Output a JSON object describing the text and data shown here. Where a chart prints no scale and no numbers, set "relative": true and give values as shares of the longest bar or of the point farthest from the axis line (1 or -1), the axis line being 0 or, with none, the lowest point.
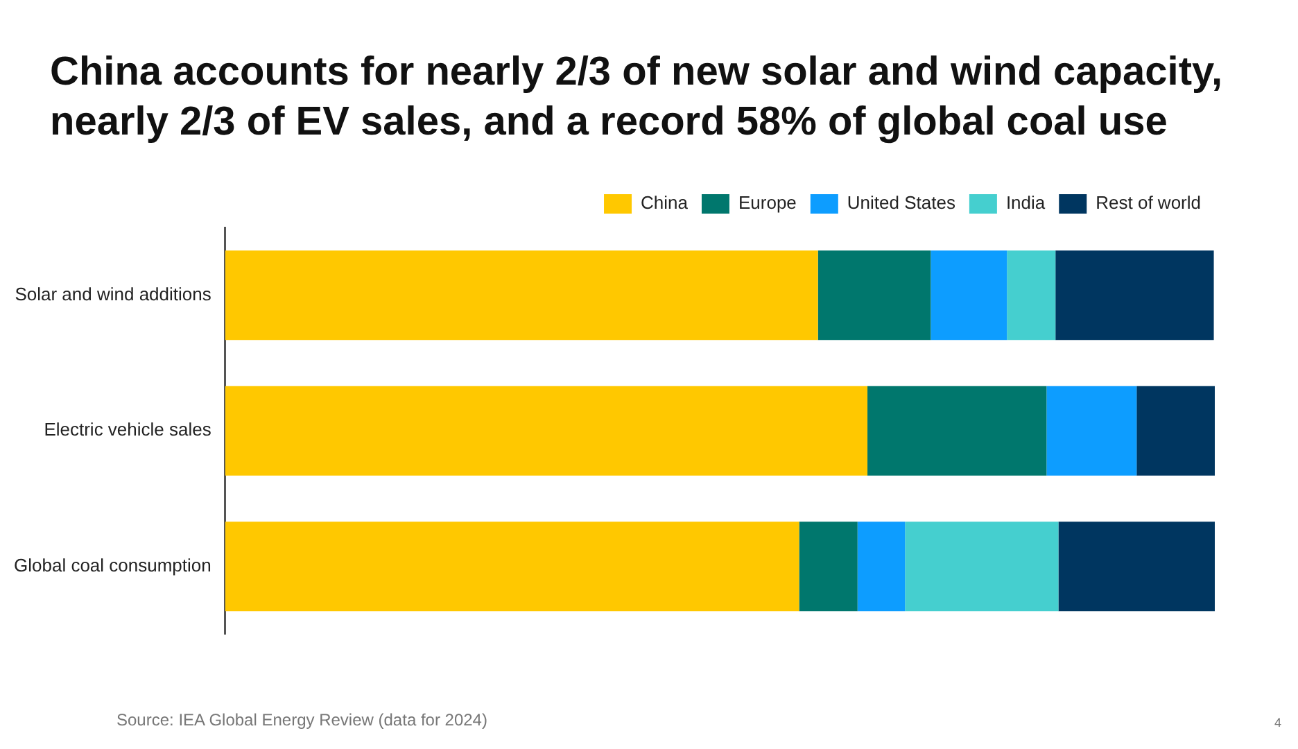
{
  "chart_data": {
    "type": "bar",
    "orientation": "horizontal",
    "stacked": true,
    "relative": true,
    "title": "China accounts for nearly 2/3 of new solar and wind capacity, nearly 2/3 of EV sales, and a record 58% of global coal use",
    "categories": [
      "Solar and wind additions",
      "Electric vehicle sales",
      "Global coal consumption"
    ],
    "series": [
      {
        "name": "China",
        "color": "#ffc800",
        "values": [
          0.599,
          0.649,
          0.58
        ]
      },
      {
        "name": "Europe",
        "color": "#00776d",
        "values": [
          0.114,
          0.181,
          0.059
        ]
      },
      {
        "name": "United States",
        "color": "#0d9dff",
        "values": [
          0.077,
          0.091,
          0.048
        ]
      },
      {
        "name": "India",
        "color": "#45cfcf",
        "values": [
          0.049,
          0,
          0.155
        ]
      },
      {
        "name": "Rest of world",
        "color": "#003660",
        "values": [
          0.16,
          0.079,
          0.158
        ]
      }
    ],
    "legend": "top right",
    "annotations": [
      "Source: IEA Global Energy Review (data for 2024)",
      "4"
    ]
  }
}
